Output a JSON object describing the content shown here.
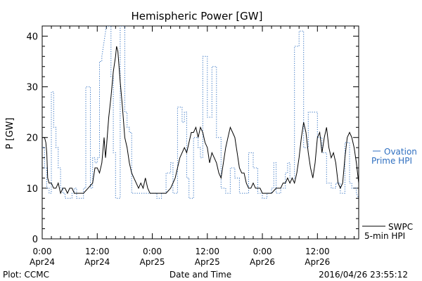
{
  "chart_data": {
    "type": "line",
    "title": "Hemispheric Power [GW]",
    "xlabel": "Date and Time",
    "ylabel": "P [GW]",
    "ylim": [
      0,
      42
    ],
    "yticks": [
      0,
      10,
      20,
      30,
      40
    ],
    "xlim": [
      0,
      69
    ],
    "x_unit": "hours since 2016-04-24 00:00",
    "xticks": [
      {
        "x": 0,
        "time": "0:00",
        "date": "Apr24"
      },
      {
        "x": 12,
        "time": "12:00",
        "date": "Apr24"
      },
      {
        "x": 24,
        "time": "0:00",
        "date": "Apr25"
      },
      {
        "x": 36,
        "time": "12:00",
        "date": "Apr25"
      },
      {
        "x": 48,
        "time": "0:00",
        "date": "Apr26"
      },
      {
        "x": 60,
        "time": "12:00",
        "date": "Apr26"
      }
    ],
    "grid": false,
    "legend_position": "right",
    "series": [
      {
        "name": "SWPC 5-min HPI",
        "legend_lines": [
          "SWPC",
          "5-min HPI"
        ],
        "color": "#000000",
        "style": "solid",
        "points": [
          [
            0,
            20
          ],
          [
            0.5,
            20
          ],
          [
            0.8,
            19
          ],
          [
            1,
            17
          ],
          [
            1.2,
            12
          ],
          [
            1.5,
            11
          ],
          [
            2,
            11
          ],
          [
            2.5,
            10
          ],
          [
            3,
            10
          ],
          [
            3.5,
            11
          ],
          [
            4,
            9
          ],
          [
            4.5,
            10
          ],
          [
            5,
            10
          ],
          [
            5.5,
            9
          ],
          [
            6,
            10
          ],
          [
            6.5,
            10
          ],
          [
            7,
            9
          ],
          [
            8,
            9
          ],
          [
            9,
            9
          ],
          [
            10,
            10
          ],
          [
            11,
            11
          ],
          [
            11.5,
            14
          ],
          [
            12,
            14
          ],
          [
            12.5,
            13
          ],
          [
            13,
            15
          ],
          [
            13.5,
            20
          ],
          [
            13.8,
            16
          ],
          [
            14,
            18
          ],
          [
            14.5,
            24
          ],
          [
            15,
            28
          ],
          [
            15.5,
            33
          ],
          [
            16,
            36
          ],
          [
            16.2,
            38
          ],
          [
            16.5,
            37
          ],
          [
            17,
            31
          ],
          [
            17.5,
            26
          ],
          [
            18,
            20
          ],
          [
            18.5,
            18
          ],
          [
            19,
            15
          ],
          [
            19.5,
            13
          ],
          [
            20,
            12
          ],
          [
            20.5,
            11
          ],
          [
            21,
            10
          ],
          [
            21.5,
            11
          ],
          [
            22,
            10
          ],
          [
            22.5,
            12
          ],
          [
            23,
            10
          ],
          [
            23.5,
            9
          ],
          [
            24,
            9
          ],
          [
            25,
            9
          ],
          [
            26,
            9
          ],
          [
            27,
            9
          ],
          [
            28,
            10
          ],
          [
            28.5,
            11
          ],
          [
            29,
            12
          ],
          [
            29.5,
            14
          ],
          [
            30,
            16
          ],
          [
            30.5,
            17
          ],
          [
            31,
            18
          ],
          [
            31.5,
            17
          ],
          [
            32,
            19
          ],
          [
            32.5,
            21
          ],
          [
            33,
            21
          ],
          [
            33.5,
            22
          ],
          [
            34,
            20
          ],
          [
            34.5,
            22
          ],
          [
            35,
            21
          ],
          [
            35.5,
            19
          ],
          [
            36,
            18
          ],
          [
            36.5,
            15
          ],
          [
            37,
            17
          ],
          [
            37.5,
            16
          ],
          [
            38,
            15
          ],
          [
            38.5,
            13
          ],
          [
            39,
            12
          ],
          [
            39.5,
            15
          ],
          [
            40,
            18
          ],
          [
            40.5,
            20
          ],
          [
            41,
            22
          ],
          [
            41.5,
            21
          ],
          [
            42,
            20
          ],
          [
            42.5,
            17
          ],
          [
            43,
            14
          ],
          [
            43.5,
            13
          ],
          [
            44,
            13
          ],
          [
            44.5,
            11
          ],
          [
            45,
            10
          ],
          [
            45.5,
            10
          ],
          [
            46,
            11
          ],
          [
            46.5,
            10
          ],
          [
            47,
            10
          ],
          [
            47.5,
            10
          ],
          [
            48,
            9
          ],
          [
            49,
            9
          ],
          [
            50,
            9
          ],
          [
            51,
            10
          ],
          [
            52,
            10
          ],
          [
            52.5,
            11
          ],
          [
            53,
            11
          ],
          [
            53.5,
            12
          ],
          [
            54,
            11
          ],
          [
            54.5,
            12
          ],
          [
            55,
            11
          ],
          [
            55.5,
            13
          ],
          [
            56,
            16
          ],
          [
            56.5,
            20
          ],
          [
            57,
            23
          ],
          [
            57.5,
            21
          ],
          [
            58,
            17
          ],
          [
            58.5,
            14
          ],
          [
            59,
            12
          ],
          [
            59.5,
            15
          ],
          [
            60,
            20
          ],
          [
            60.5,
            21
          ],
          [
            61,
            17
          ],
          [
            61.5,
            20
          ],
          [
            62,
            22
          ],
          [
            62.5,
            18
          ],
          [
            63,
            16
          ],
          [
            63.5,
            17
          ],
          [
            64,
            15
          ],
          [
            64.5,
            11
          ],
          [
            65,
            10
          ],
          [
            65.5,
            11
          ],
          [
            66,
            16
          ],
          [
            66.5,
            20
          ],
          [
            67,
            21
          ],
          [
            67.5,
            20
          ],
          [
            68,
            18
          ],
          [
            68.5,
            15
          ],
          [
            69,
            11
          ]
        ]
      },
      {
        "name": "Ovation Prime HPI",
        "legend_lines": [
          "Ovation",
          "Prime HPI"
        ],
        "color": "#2f6fc0",
        "style": "dotted",
        "points": [
          [
            0,
            18
          ],
          [
            0.5,
            18
          ],
          [
            0.5,
            14
          ],
          [
            1,
            14
          ],
          [
            1,
            10
          ],
          [
            1.5,
            10
          ],
          [
            1.5,
            9
          ],
          [
            2,
            9
          ],
          [
            2,
            29
          ],
          [
            2.5,
            29
          ],
          [
            2.5,
            22
          ],
          [
            3,
            22
          ],
          [
            3,
            18
          ],
          [
            3.5,
            18
          ],
          [
            3.5,
            14
          ],
          [
            4,
            14
          ],
          [
            4,
            10
          ],
          [
            4.5,
            10
          ],
          [
            4.5,
            9
          ],
          [
            5,
            9
          ],
          [
            5,
            8
          ],
          [
            6.5,
            8
          ],
          [
            6.5,
            9
          ],
          [
            7,
            9
          ],
          [
            7,
            10
          ],
          [
            7.5,
            10
          ],
          [
            7.5,
            8
          ],
          [
            9,
            8
          ],
          [
            9,
            10
          ],
          [
            9.5,
            10
          ],
          [
            9.5,
            30
          ],
          [
            10.5,
            30
          ],
          [
            10.5,
            10
          ],
          [
            11,
            10
          ],
          [
            11,
            16
          ],
          [
            11.5,
            16
          ],
          [
            11.5,
            15
          ],
          [
            12,
            15
          ],
          [
            12,
            16
          ],
          [
            12.5,
            16
          ],
          [
            12.5,
            35
          ],
          [
            13,
            35
          ],
          [
            13,
            36
          ],
          [
            14,
            42
          ],
          [
            15,
            42
          ],
          [
            15,
            32
          ],
          [
            15.5,
            32
          ],
          [
            15.5,
            17
          ],
          [
            16,
            17
          ],
          [
            16,
            8
          ],
          [
            17,
            8
          ],
          [
            17,
            42
          ],
          [
            18,
            42
          ],
          [
            18,
            25
          ],
          [
            18.5,
            25
          ],
          [
            18.5,
            22
          ],
          [
            19,
            22
          ],
          [
            19,
            21
          ],
          [
            19.5,
            21
          ],
          [
            19.5,
            9
          ],
          [
            22,
            9
          ],
          [
            22,
            9
          ],
          [
            25,
            9
          ],
          [
            25,
            8
          ],
          [
            26,
            8
          ],
          [
            26,
            9
          ],
          [
            27,
            9
          ],
          [
            27,
            13
          ],
          [
            28,
            13
          ],
          [
            28,
            15
          ],
          [
            28.5,
            15
          ],
          [
            28.5,
            9
          ],
          [
            29.5,
            9
          ],
          [
            29.5,
            26
          ],
          [
            30.5,
            26
          ],
          [
            30.5,
            23
          ],
          [
            31,
            23
          ],
          [
            31,
            25
          ],
          [
            31.5,
            25
          ],
          [
            31.5,
            12
          ],
          [
            32,
            12
          ],
          [
            32,
            8
          ],
          [
            33,
            8
          ],
          [
            33,
            20
          ],
          [
            34,
            20
          ],
          [
            34,
            18
          ],
          [
            34.5,
            18
          ],
          [
            34.5,
            16
          ],
          [
            35,
            16
          ],
          [
            35,
            36
          ],
          [
            36,
            36
          ],
          [
            36,
            24
          ],
          [
            37,
            24
          ],
          [
            37,
            34
          ],
          [
            38,
            34
          ],
          [
            38,
            20
          ],
          [
            39,
            20
          ],
          [
            39,
            10
          ],
          [
            40,
            10
          ],
          [
            40,
            9
          ],
          [
            41,
            9
          ],
          [
            41,
            14
          ],
          [
            42,
            14
          ],
          [
            42,
            12
          ],
          [
            43,
            12
          ],
          [
            43,
            9
          ],
          [
            45,
            9
          ],
          [
            45,
            17
          ],
          [
            46,
            17
          ],
          [
            46,
            14
          ],
          [
            47,
            14
          ],
          [
            47,
            9
          ],
          [
            48,
            9
          ],
          [
            48,
            8
          ],
          [
            49,
            8
          ],
          [
            49,
            9
          ],
          [
            50,
            9
          ],
          [
            50,
            10
          ],
          [
            50.5,
            10
          ],
          [
            50.5,
            15
          ],
          [
            51,
            15
          ],
          [
            51,
            9
          ],
          [
            52,
            9
          ],
          [
            52,
            10
          ],
          [
            53,
            10
          ],
          [
            53,
            13
          ],
          [
            53.5,
            13
          ],
          [
            53.5,
            15
          ],
          [
            54,
            15
          ],
          [
            54,
            12
          ],
          [
            55,
            12
          ],
          [
            55,
            38
          ],
          [
            56,
            38
          ],
          [
            56,
            41
          ],
          [
            57,
            41
          ],
          [
            57,
            18
          ],
          [
            58,
            18
          ],
          [
            58,
            25
          ],
          [
            60,
            25
          ],
          [
            60,
            20
          ],
          [
            61,
            20
          ],
          [
            61,
            17
          ],
          [
            62,
            17
          ],
          [
            62,
            11
          ],
          [
            63,
            11
          ],
          [
            63,
            10
          ],
          [
            64,
            10
          ],
          [
            64,
            11
          ],
          [
            65,
            11
          ],
          [
            65,
            9
          ],
          [
            66,
            9
          ],
          [
            66,
            19
          ],
          [
            67,
            19
          ],
          [
            67,
            11
          ],
          [
            67.5,
            11
          ],
          [
            67.5,
            10
          ],
          [
            68.5,
            10
          ],
          [
            68.5,
            9
          ],
          [
            69,
            8
          ]
        ]
      }
    ]
  },
  "footer": {
    "left": "Plot: CCMC",
    "right": "2016/04/26 23:55:12"
  }
}
